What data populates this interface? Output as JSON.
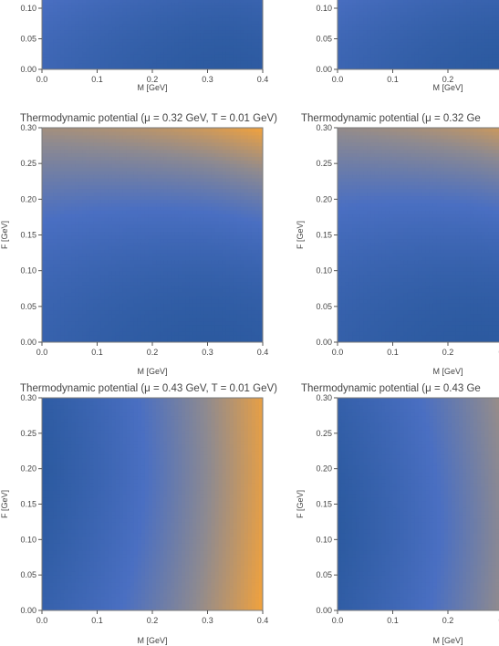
{
  "figure": {
    "colors": {
      "low": "#2c5aa0",
      "mid": "#4a6fc2",
      "grey": "#8e8a90",
      "high": "#f2a23c",
      "frame": "#7a7a7a"
    }
  },
  "chart_data": [
    {
      "id": "p-top-left",
      "type": "contour",
      "title": "",
      "xlabel": "M [GeV]",
      "ylabel": "",
      "xticks": [
        "0.0",
        "0.1",
        "0.2",
        "0.3",
        "0.4"
      ],
      "yticks": [
        "0.00",
        "0.05",
        "0.10"
      ],
      "xlim": [
        0,
        0.4
      ],
      "ylim": [
        0,
        0.3
      ],
      "y_visible": [
        0.0,
        0.1
      ],
      "minimum": [
        0.33,
        0.0
      ],
      "trend": "flat"
    },
    {
      "id": "p-top-right",
      "type": "contour",
      "title": "",
      "xlabel": "M [GeV]",
      "ylabel": "",
      "xticks": [
        "0.0",
        "0.1",
        "0.2",
        "0"
      ],
      "yticks": [
        "0.00",
        "0.05",
        "0.10"
      ],
      "xlim": [
        0,
        0.4
      ],
      "ylim": [
        0,
        0.3
      ],
      "y_visible": [
        0.0,
        0.1
      ],
      "minimum": [
        0.3,
        0.0
      ],
      "trend": "flat"
    },
    {
      "id": "p-mid-left",
      "type": "contour",
      "title": "Thermodynamic potential (μ = 0.32 GeV, T = 0.01 GeV)",
      "xlabel": "M [GeV]",
      "ylabel": "F [GeV]",
      "xticks": [
        "0.0",
        "0.1",
        "0.2",
        "0.3",
        "0.4"
      ],
      "yticks": [
        "0.00",
        "0.05",
        "0.10",
        "0.15",
        "0.20",
        "0.25",
        "0.30"
      ],
      "xlim": [
        0,
        0.4
      ],
      "ylim": [
        0,
        0.3
      ],
      "minimum": [
        0.3,
        0.01
      ],
      "trend": "diagonal"
    },
    {
      "id": "p-mid-right",
      "type": "contour",
      "title": "Thermodynamic potential (μ = 0.32 Ge",
      "xlabel": "M [GeV]",
      "ylabel": "F [GeV]",
      "xticks": [
        "0.0",
        "0.1",
        "0.2",
        "0.:"
      ],
      "yticks": [
        "0.00",
        "0.05",
        "0.10",
        "0.15",
        "0.20",
        "0.25",
        "0.30"
      ],
      "xlim": [
        0,
        0.4
      ],
      "ylim": [
        0,
        0.3
      ],
      "minimum": [
        0.25,
        0.0
      ],
      "trend": "diagonal"
    },
    {
      "id": "p-bot-left",
      "type": "contour",
      "title": "Thermodynamic potential (μ = 0.43 GeV, T = 0.01 GeV)",
      "xlabel": "M [GeV]",
      "ylabel": "F [GeV]",
      "xticks": [
        "0.0",
        "0.1",
        "0.2",
        "0.3",
        "0.4"
      ],
      "yticks": [
        "0.00",
        "0.05",
        "0.10",
        "0.15",
        "0.20",
        "0.25",
        "0.30"
      ],
      "xlim": [
        0,
        0.4
      ],
      "ylim": [
        0,
        0.3
      ],
      "minimum": [
        0.0,
        0.2
      ],
      "trend": "vertical"
    },
    {
      "id": "p-bot-right",
      "type": "contour",
      "title": "Thermodynamic potential (μ = 0.43 Ge",
      "xlabel": "M [GeV]",
      "ylabel": "F [GeV]",
      "xticks": [
        "0.0",
        "0.1",
        "0.2",
        "0.:"
      ],
      "yticks": [
        "0.00",
        "0.05",
        "0.10",
        "0.15",
        "0.20",
        "0.25",
        "0.30"
      ],
      "xlim": [
        0,
        0.4
      ],
      "ylim": [
        0,
        0.3
      ],
      "minimum": [
        0.0,
        0.12
      ],
      "trend": "vertical"
    }
  ]
}
